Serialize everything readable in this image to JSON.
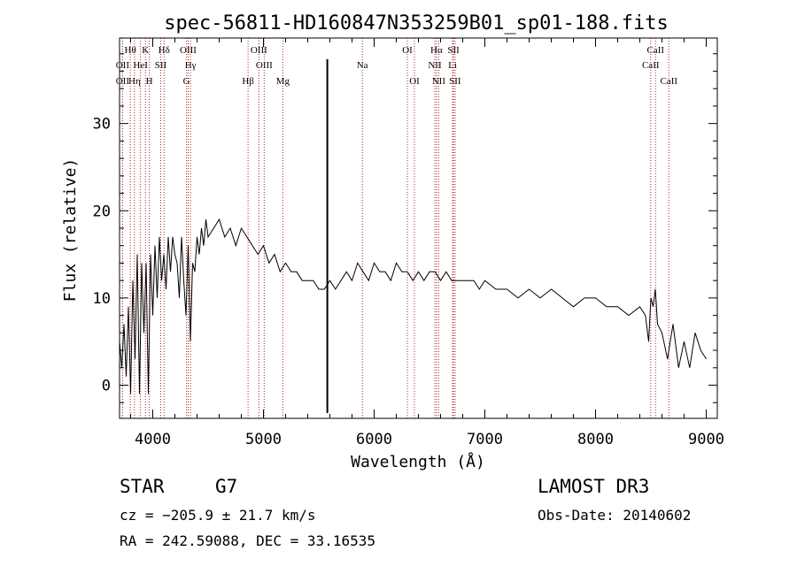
{
  "chart_data": {
    "type": "line",
    "title": "spec-56811-HD160847N353259B01_sp01-188.fits",
    "xlabel": "Wavelength (Å)",
    "ylabel": "Flux (relative)",
    "xlim": [
      3700,
      9100
    ],
    "ylim": [
      -3.8,
      39.8
    ],
    "xticks": [
      4000,
      5000,
      6000,
      7000,
      8000,
      9000
    ],
    "yticks": [
      0,
      10,
      20,
      30
    ],
    "marker_wavelength": 5577,
    "series": [
      {
        "name": "spectrum",
        "x": [
          3700,
          3720,
          3740,
          3760,
          3780,
          3800,
          3820,
          3840,
          3860,
          3880,
          3900,
          3920,
          3940,
          3960,
          3980,
          4000,
          4020,
          4040,
          4060,
          4080,
          4100,
          4120,
          4140,
          4160,
          4180,
          4200,
          4220,
          4240,
          4260,
          4280,
          4300,
          4320,
          4340,
          4360,
          4380,
          4400,
          4420,
          4440,
          4460,
          4480,
          4500,
          4550,
          4600,
          4650,
          4700,
          4750,
          4800,
          4850,
          4900,
          4950,
          5000,
          5050,
          5100,
          5150,
          5200,
          5250,
          5300,
          5350,
          5400,
          5450,
          5500,
          5550,
          5600,
          5650,
          5700,
          5750,
          5800,
          5850,
          5900,
          5950,
          6000,
          6050,
          6100,
          6150,
          6200,
          6250,
          6300,
          6350,
          6400,
          6450,
          6500,
          6550,
          6600,
          6650,
          6700,
          6750,
          6800,
          6850,
          6900,
          6950,
          7000,
          7100,
          7200,
          7300,
          7400,
          7500,
          7600,
          7700,
          7800,
          7900,
          8000,
          8100,
          8200,
          8300,
          8400,
          8450,
          8480,
          8500,
          8520,
          8540,
          8560,
          8600,
          8650,
          8700,
          8750,
          8800,
          8850,
          8900,
          8950,
          9000
        ],
        "values": [
          5,
          2,
          7,
          1,
          9,
          -1,
          12,
          3,
          15,
          -1,
          14,
          6,
          14,
          -1,
          15,
          8,
          16,
          10,
          17,
          12,
          15,
          11,
          17,
          13,
          17,
          15,
          14,
          10,
          17,
          12,
          8,
          16,
          5,
          14,
          13,
          17,
          15,
          18,
          16,
          19,
          17,
          18,
          19,
          17,
          18,
          16,
          18,
          17,
          16,
          15,
          16,
          14,
          15,
          13,
          14,
          13,
          13,
          12,
          12,
          12,
          11,
          11,
          12,
          11,
          12,
          13,
          12,
          14,
          13,
          12,
          14,
          13,
          13,
          12,
          14,
          13,
          13,
          12,
          13,
          12,
          13,
          13,
          12,
          13,
          12,
          12,
          12,
          12,
          12,
          11,
          12,
          11,
          11,
          10,
          11,
          10,
          11,
          10,
          9,
          10,
          10,
          9,
          9,
          8,
          9,
          8,
          5,
          10,
          9,
          11,
          7,
          6,
          3,
          7,
          2,
          5,
          2,
          6,
          4,
          3
        ]
      }
    ],
    "lines": [
      {
        "label": "Hθ",
        "x": 3797,
        "row": 0
      },
      {
        "label": "OII",
        "x": 3727,
        "row": 1
      },
      {
        "label": "OII",
        "x": 3727,
        "row": 2
      },
      {
        "label": "Hη",
        "x": 3835,
        "row": 2
      },
      {
        "label": "HeI",
        "x": 3889,
        "row": 1
      },
      {
        "label": "K",
        "x": 3934,
        "row": 0
      },
      {
        "label": "H",
        "x": 3969,
        "row": 2
      },
      {
        "label": "SII",
        "x": 4072,
        "row": 1
      },
      {
        "label": "Hδ",
        "x": 4102,
        "row": 0
      },
      {
        "label": "G",
        "x": 4305,
        "row": 2
      },
      {
        "label": "OIII",
        "x": 4320,
        "row": 0
      },
      {
        "label": "Hγ",
        "x": 4341,
        "row": 1
      },
      {
        "label": "Hβ",
        "x": 4861,
        "row": 2
      },
      {
        "label": "OIII",
        "x": 4959,
        "row": 0
      },
      {
        "label": "OIII",
        "x": 5007,
        "row": 1
      },
      {
        "label": "Mg",
        "x": 5175,
        "row": 2
      },
      {
        "label": "Na",
        "x": 5893,
        "row": 1
      },
      {
        "label": "OI",
        "x": 6300,
        "row": 0
      },
      {
        "label": "OI",
        "x": 6364,
        "row": 2
      },
      {
        "label": "NII",
        "x": 6548,
        "row": 1
      },
      {
        "label": "Hα",
        "x": 6563,
        "row": 0
      },
      {
        "label": "NII",
        "x": 6583,
        "row": 2
      },
      {
        "label": "SII",
        "x": 6717,
        "row": 0
      },
      {
        "label": "Li",
        "x": 6708,
        "row": 1
      },
      {
        "label": "SII",
        "x": 6731,
        "row": 2
      },
      {
        "label": "CaII",
        "x": 8498,
        "row": 1
      },
      {
        "label": "CaII",
        "x": 8542,
        "row": 0
      },
      {
        "label": "CaII",
        "x": 8662,
        "row": 2
      }
    ]
  },
  "info": {
    "object_class": "STAR",
    "subclass": "G7",
    "survey": "LAMOST DR3",
    "cz": "cz = −205.9 ± 21.7 km/s",
    "obs_date": "Obs-Date: 20140602",
    "coords": "RA = 242.59088, DEC =  33.16535"
  }
}
